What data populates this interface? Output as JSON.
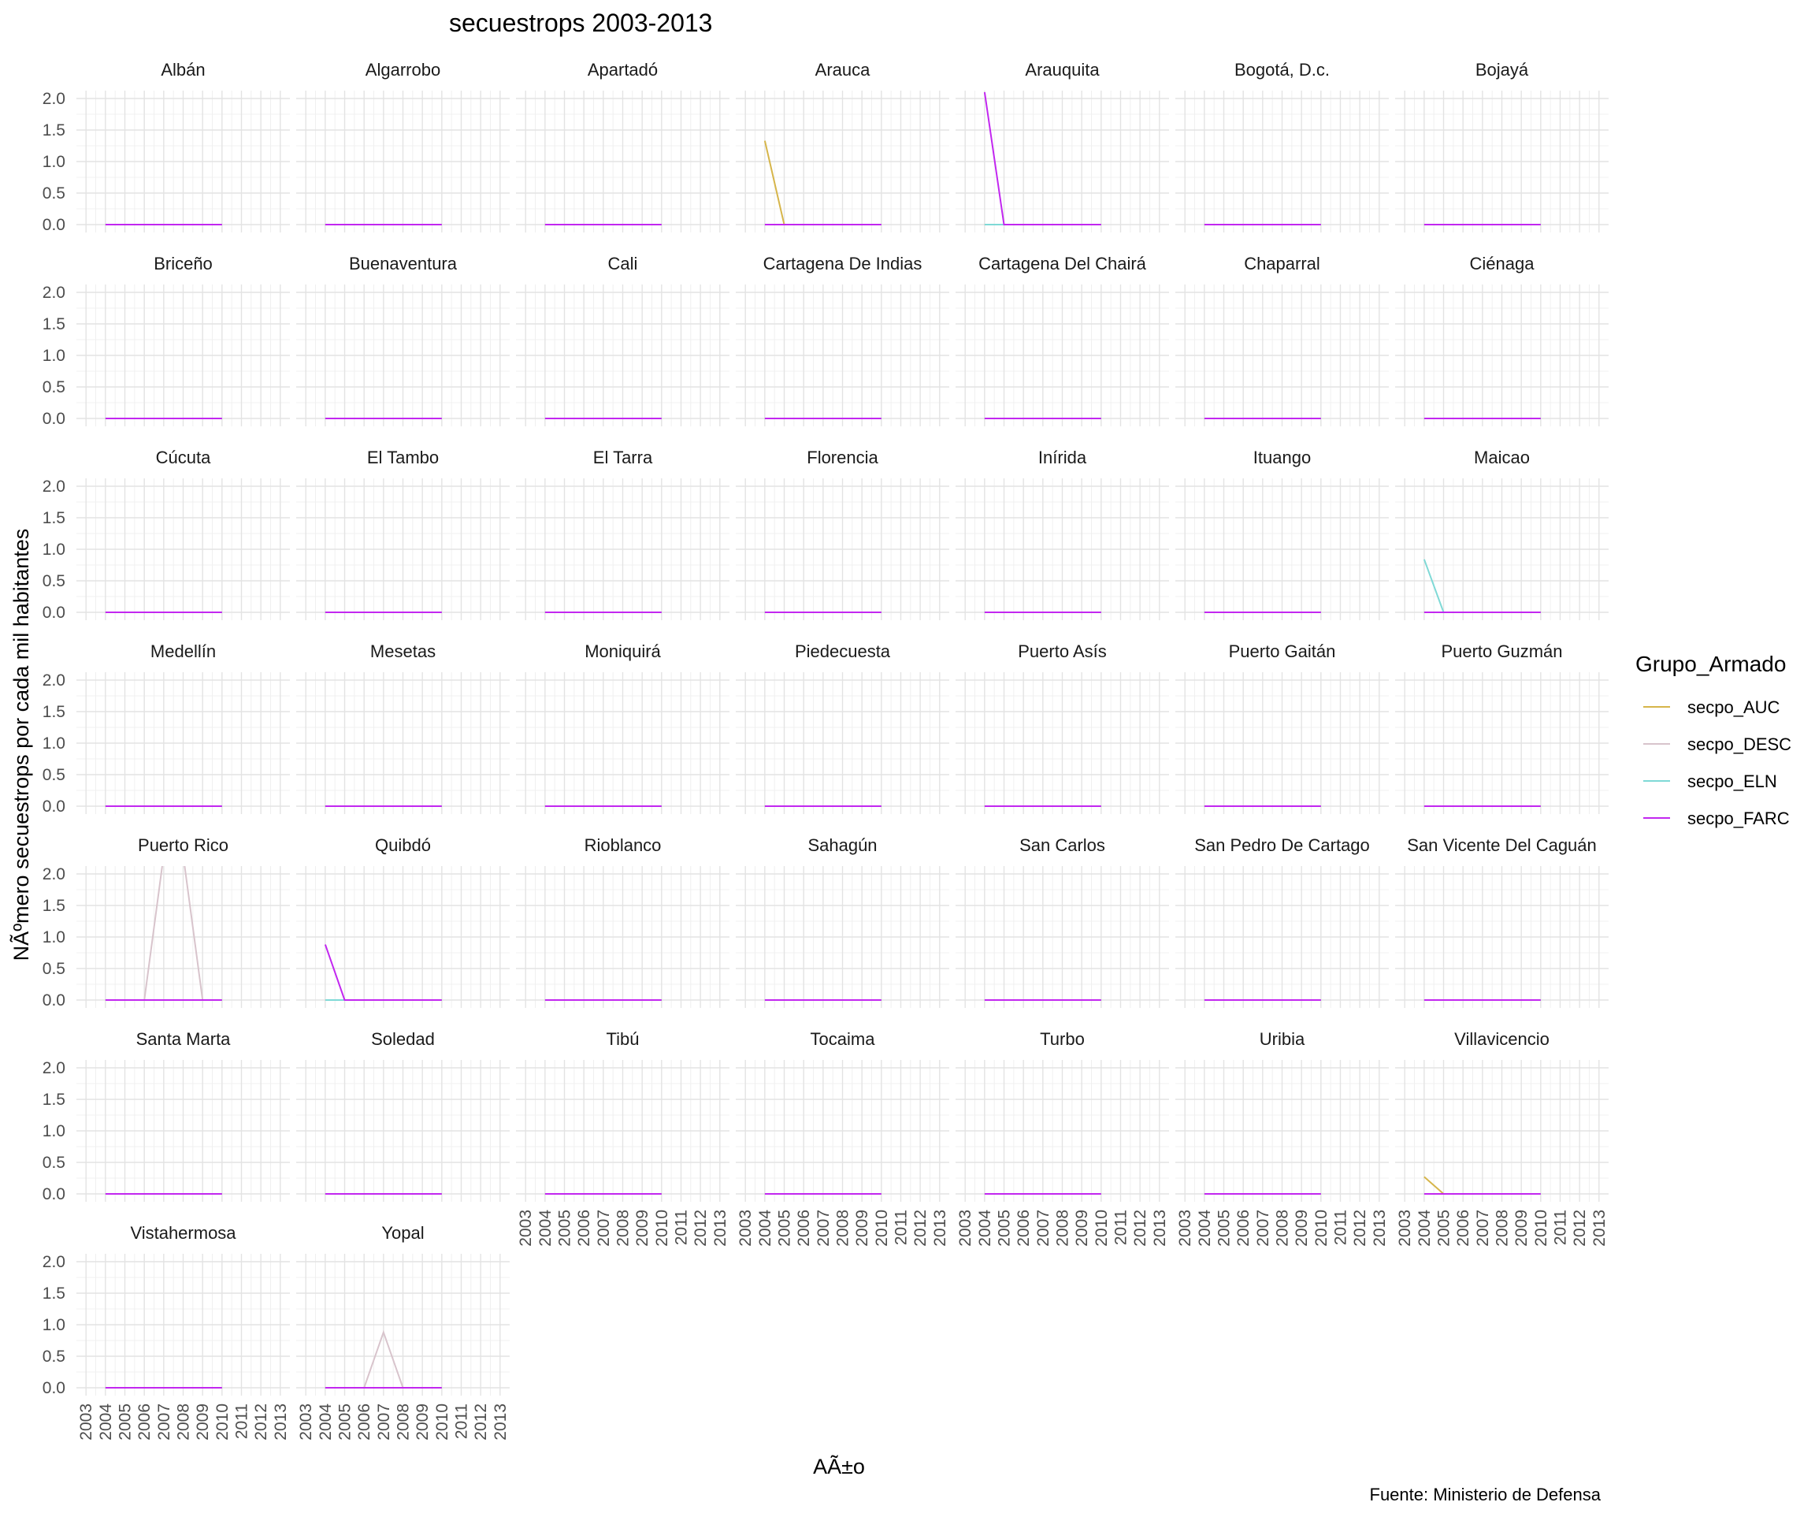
{
  "chart_data": {
    "type": "line",
    "title": "secuestrops 2003-2013",
    "xlabel": "AÃ±o",
    "ylabel": "NÃºmero secuestrops por cada mil habitantes",
    "caption": "Fuente: Ministerio de Defensa",
    "xlim": [
      2003,
      2013
    ],
    "ylim": [
      0,
      2
    ],
    "x_ticks": [
      "2003",
      "2004",
      "2005",
      "2006",
      "2007",
      "2008",
      "2009",
      "2010",
      "2011",
      "2012",
      "2013"
    ],
    "y_ticks": [
      "0.0",
      "0.5",
      "1.0",
      "1.5",
      "2.0"
    ],
    "grid": true,
    "facet_ncol": 7,
    "legend": {
      "title": "Grupo_Armado",
      "placement": "right",
      "entries": [
        "secpo_AUC",
        "secpo_DESC",
        "secpo_ELN",
        "secpo_FARC"
      ]
    },
    "colors": {
      "secpo_AUC": "#d6b54a",
      "secpo_DESC": "#d8c4cc",
      "secpo_ELN": "#7fd9d6",
      "secpo_FARC": "#c227f0"
    },
    "x": [
      2004,
      2005,
      2006,
      2007,
      2008,
      2009,
      2010
    ],
    "panels": [
      {
        "name": "Albán"
      },
      {
        "name": "Algarrobo"
      },
      {
        "name": "Apartadó"
      },
      {
        "name": "Arauca",
        "values": {
          "secpo_AUC": [
            1.33,
            0,
            0,
            0,
            0,
            0,
            0
          ]
        }
      },
      {
        "name": "Arauquita",
        "values": {
          "secpo_FARC": [
            2.1,
            0,
            0,
            0,
            0,
            0,
            0
          ]
        }
      },
      {
        "name": "Bogotá, D.c."
      },
      {
        "name": "Bojayá"
      },
      {
        "name": "Briceño"
      },
      {
        "name": "Buenaventura"
      },
      {
        "name": "Cali"
      },
      {
        "name": "Cartagena De Indias"
      },
      {
        "name": "Cartagena Del Chairá"
      },
      {
        "name": "Chaparral"
      },
      {
        "name": "Ciénaga"
      },
      {
        "name": "Cúcuta"
      },
      {
        "name": "El Tambo"
      },
      {
        "name": "El Tarra"
      },
      {
        "name": "Florencia"
      },
      {
        "name": "Inírida"
      },
      {
        "name": "Ituango"
      },
      {
        "name": "Maicao",
        "values": {
          "secpo_ELN": [
            0.84,
            0,
            0,
            0,
            0,
            0,
            0
          ]
        }
      },
      {
        "name": "Medellín"
      },
      {
        "name": "Mesetas"
      },
      {
        "name": "Moniquirá"
      },
      {
        "name": "Piedecuesta"
      },
      {
        "name": "Puerto Asís"
      },
      {
        "name": "Puerto Gaitán"
      },
      {
        "name": "Puerto Guzmán"
      },
      {
        "name": "Puerto Rico",
        "values": {
          "secpo_DESC": [
            0,
            0,
            0,
            2.3,
            2.3,
            0,
            0
          ]
        }
      },
      {
        "name": "Quibdó",
        "values": {
          "secpo_FARC": [
            0.88,
            0,
            0,
            0,
            0,
            0,
            0
          ]
        }
      },
      {
        "name": "Rioblanco"
      },
      {
        "name": "Sahagún"
      },
      {
        "name": "San Carlos"
      },
      {
        "name": "San Pedro De Cartago"
      },
      {
        "name": "San Vicente Del Caguán"
      },
      {
        "name": "Santa Marta"
      },
      {
        "name": "Soledad"
      },
      {
        "name": "Tibú"
      },
      {
        "name": "Tocaima"
      },
      {
        "name": "Turbo"
      },
      {
        "name": "Uribia"
      },
      {
        "name": "Villavicencio",
        "values": {
          "secpo_AUC": [
            0.27,
            0,
            0,
            0,
            0,
            0,
            0
          ]
        }
      },
      {
        "name": "Vistahermosa"
      },
      {
        "name": "Yopal",
        "values": {
          "secpo_DESC": [
            0,
            0,
            0,
            0.88,
            0,
            0,
            0
          ]
        }
      }
    ]
  }
}
